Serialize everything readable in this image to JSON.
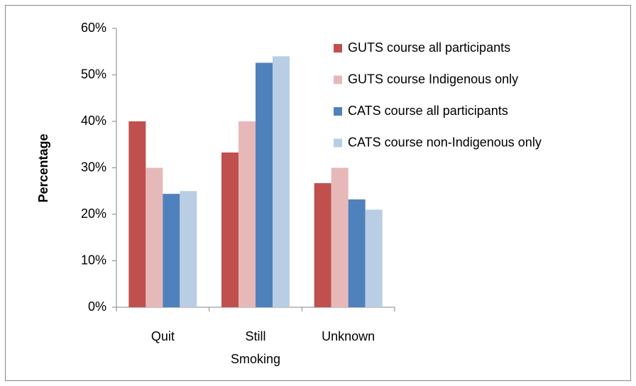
{
  "chart_data": {
    "type": "bar",
    "y_label": "Percentage",
    "categories": [
      "Quit",
      "Still Smoking",
      "Unknown"
    ],
    "series": [
      {
        "name": "GUTS course all participants",
        "color": "#c0504d",
        "values": [
          40,
          33.3,
          26.7
        ]
      },
      {
        "name": "GUTS course Indigenous only",
        "color": "#e6b9b8",
        "values": [
          30,
          40,
          30
        ]
      },
      {
        "name": "CATS course all participants",
        "color": "#4f81bd",
        "values": [
          24.4,
          52.6,
          23.2
        ]
      },
      {
        "name": "CATS course non-Indigenous only",
        "color": "#b9cde5",
        "values": [
          25,
          54,
          21
        ]
      }
    ],
    "ylim": [
      0,
      60
    ],
    "yticks": [
      {
        "value": 0,
        "label": "0%"
      },
      {
        "value": 10,
        "label": "10%"
      },
      {
        "value": 20,
        "label": "20%"
      },
      {
        "value": 30,
        "label": "30%"
      },
      {
        "value": 40,
        "label": "40%"
      },
      {
        "value": 50,
        "label": "50%"
      },
      {
        "value": 60,
        "label": "60%"
      }
    ],
    "grid": false,
    "legend": "right"
  }
}
